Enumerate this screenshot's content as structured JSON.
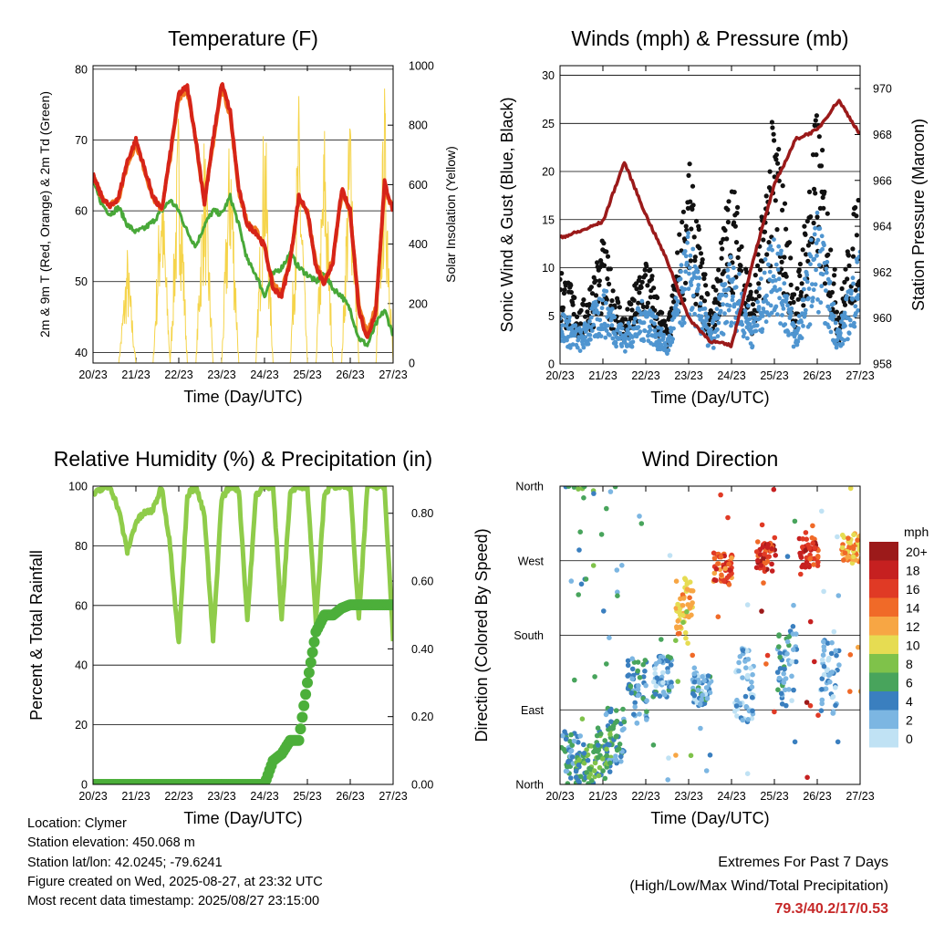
{
  "x_ticks": [
    "20/23",
    "21/23",
    "22/23",
    "23/23",
    "24/23",
    "25/23",
    "26/23",
    "27/23"
  ],
  "x_label": "Time (Day/UTC)",
  "info": {
    "location": "Location: Clymer",
    "elevation": "Station elevation: 450.068 m",
    "latlon": "Station lat/lon: 42.0245; -79.6241",
    "created": "Figure created on Wed, 2025-08-27, at 23:32 UTC",
    "recent": "Most recent data timestamp: 2025/08/27 23:15:00"
  },
  "extremes": {
    "title": "Extremes For Past 7 Days",
    "subtitle": "(High/Low/Max Wind/Total Precipitation)",
    "values": "79.3/40.2/17/0.53"
  },
  "chart_data": [
    {
      "id": "temperature",
      "type": "line",
      "title": "Temperature (F)",
      "ylabel": "2m & 9m T (Red, Orange) & 2m Td (Green)",
      "y2label": "Solar Insolation (Yellow)",
      "ylim": [
        38.5,
        80.5
      ],
      "y2lim": [
        0,
        1000
      ],
      "yticks": [
        "40",
        "50",
        "60",
        "70",
        "80"
      ],
      "y2ticks": [
        "0",
        "200",
        "400",
        "600",
        "800",
        "1000"
      ],
      "grid": true,
      "colors": {
        "t2m": "#d62418",
        "t9m": "#f07a20",
        "td": "#48a838",
        "solar": "#f5d44a"
      },
      "x_days": [
        0,
        0.2,
        0.4,
        0.6,
        0.8,
        1,
        1.2,
        1.4,
        1.6,
        1.8,
        2,
        2.2,
        2.4,
        2.6,
        2.8,
        3,
        3.2,
        3.4,
        3.6,
        3.8,
        4,
        4.2,
        4.4,
        4.6,
        4.8,
        5,
        5.2,
        5.4,
        5.6,
        5.8,
        6,
        6.2,
        6.4,
        6.6,
        6.8,
        7
      ],
      "series": [
        {
          "key": "t2m",
          "values": [
            65,
            62,
            60.5,
            62,
            67,
            70,
            66,
            62,
            60,
            68,
            76.5,
            77.5,
            70,
            61,
            70,
            78,
            74,
            63,
            58,
            57,
            55,
            49,
            48,
            53,
            62,
            60,
            52,
            49.5,
            53,
            63,
            60,
            46,
            42,
            46,
            64,
            60
          ]
        },
        {
          "key": "t9m",
          "values": [
            64.8,
            62,
            60.8,
            61.8,
            66.5,
            69.5,
            65.8,
            61.8,
            60.2,
            67.5,
            76,
            77,
            69.8,
            61.2,
            69.5,
            77.5,
            73.5,
            62.8,
            58.2,
            57.2,
            55,
            49.5,
            48.5,
            53.2,
            61.5,
            59.8,
            52.5,
            50,
            53.2,
            62.5,
            59.8,
            46.5,
            42.5,
            46.5,
            63.5,
            60
          ]
        },
        {
          "key": "td",
          "values": [
            64,
            61,
            59.5,
            60.5,
            58,
            57,
            57.5,
            58.5,
            60,
            61.5,
            60,
            57,
            55,
            58,
            60,
            59.5,
            62,
            58,
            53,
            51,
            48,
            51,
            52,
            54,
            52,
            51,
            50,
            51,
            49,
            48,
            46,
            42,
            41,
            44,
            46,
            42.5
          ]
        },
        {
          "key": "solar",
          "values": [
            0,
            0,
            0,
            0,
            400,
            0,
            0,
            0,
            750,
            0,
            920,
            0,
            0,
            820,
            0,
            0,
            880,
            0,
            0,
            0,
            930,
            0,
            0,
            0,
            920,
            0,
            0,
            850,
            0,
            0,
            970,
            0,
            0,
            0,
            960,
            0
          ]
        }
      ]
    },
    {
      "id": "winds",
      "type": "scatter",
      "title": "Winds (mph) & Pressure (mb)",
      "ylabel": "Sonic Wind & Gust (Blue, Black)",
      "y2label": "Station Pressure (Maroon)",
      "ylim": [
        0,
        31
      ],
      "y2lim": [
        958,
        971
      ],
      "yticks": [
        "0",
        "5",
        "10",
        "15",
        "20",
        "25",
        "30"
      ],
      "y2ticks": [
        "958",
        "960",
        "962",
        "964",
        "966",
        "968",
        "970"
      ],
      "grid": true,
      "colors": {
        "wind": "#4f95d0",
        "gust": "#111111",
        "pressure": "#9b1a1a"
      },
      "x_days": [
        0,
        0.5,
        1,
        1.5,
        2,
        2.5,
        3,
        3.5,
        4,
        4.5,
        5,
        5.5,
        6,
        6.5,
        7
      ],
      "series": [
        {
          "key": "wind",
          "values": [
            5,
            3,
            7,
            3,
            6,
            2,
            12,
            3,
            10,
            4,
            13,
            3,
            14,
            3,
            11
          ]
        },
        {
          "key": "gust",
          "values": [
            9,
            5,
            11,
            4,
            10,
            3,
            18,
            5,
            17,
            6,
            23,
            6,
            23,
            5,
            17
          ]
        },
        {
          "key": "pressure",
          "values": [
            963.5,
            963.8,
            964.2,
            966.8,
            964.5,
            962.5,
            960,
            959,
            958.8,
            962.5,
            965.8,
            967.8,
            968.2,
            969.5,
            968
          ]
        }
      ]
    },
    {
      "id": "humidity",
      "type": "line",
      "title": "Relative Humidity (%) & Precipitation (in)",
      "ylabel": "Percent & Total Rainfall",
      "ylim": [
        0,
        100
      ],
      "y2lim": [
        0,
        0.88
      ],
      "yticks": [
        "0",
        "20",
        "40",
        "60",
        "80",
        "100"
      ],
      "y2ticks": [
        "0.00",
        "0.20",
        "0.40",
        "0.60",
        "0.80"
      ],
      "grid": true,
      "colors": {
        "rh": "#8fcc4a",
        "precip": "#4caf3a"
      },
      "x_days": [
        0,
        0.2,
        0.4,
        0.6,
        0.8,
        1,
        1.2,
        1.4,
        1.6,
        1.8,
        2,
        2.2,
        2.4,
        2.6,
        2.8,
        3,
        3.2,
        3.4,
        3.6,
        3.8,
        4,
        4.2,
        4.4,
        4.6,
        4.8,
        5,
        5.2,
        5.4,
        5.6,
        5.8,
        6,
        6.2,
        6.4,
        6.6,
        6.8,
        7
      ],
      "series": [
        {
          "key": "rh",
          "values": [
            97,
            99,
            100,
            92,
            78,
            88,
            91,
            92,
            100,
            80,
            47,
            97,
            100,
            90,
            48,
            96,
            100,
            99,
            55,
            97,
            100,
            100,
            55,
            98,
            100,
            100,
            55,
            98,
            100,
            100,
            100,
            55,
            100,
            100,
            100,
            49
          ]
        },
        {
          "key": "precip",
          "values": [
            0,
            0,
            0,
            0,
            0,
            0,
            0,
            0,
            0,
            0,
            0,
            0,
            0,
            0,
            0,
            0,
            0,
            0,
            0,
            0,
            0,
            0.07,
            0.09,
            0.13,
            0.13,
            0.3,
            0.45,
            0.5,
            0.5,
            0.52,
            0.53,
            0.53,
            0.53,
            0.53,
            0.53,
            0.53
          ]
        }
      ]
    },
    {
      "id": "direction",
      "type": "scatter",
      "title": "Wind Direction",
      "ylabel": "Direction (Colored By Speed)",
      "ylim": [
        0,
        360
      ],
      "yticks": [
        "North",
        "East",
        "South",
        "West",
        "North"
      ],
      "grid": true,
      "legend": {
        "title": "mph",
        "placement": "right",
        "labels": [
          "20+",
          "18",
          "16",
          "14",
          "12",
          "10",
          "8",
          "6",
          "4",
          "2",
          "0"
        ],
        "colors": [
          "#9c1a1a",
          "#c62020",
          "#e03a25",
          "#f06a28",
          "#f7a644",
          "#e6dc52",
          "#7fc24a",
          "#48a45c",
          "#3a7fbf",
          "#7cb6e2",
          "#c0e2f4"
        ]
      },
      "clusters": [
        {
          "x": 0.25,
          "dir": 30,
          "spread": 35,
          "speed": 4
        },
        {
          "x": 0.6,
          "dir": 20,
          "spread": 30,
          "speed": 6
        },
        {
          "x": 1.0,
          "dir": 40,
          "spread": 30,
          "speed": 6
        },
        {
          "x": 1.3,
          "dir": 60,
          "spread": 35,
          "speed": 4
        },
        {
          "x": 1.8,
          "dir": 110,
          "spread": 40,
          "speed": 4
        },
        {
          "x": 2.4,
          "dir": 130,
          "spread": 25,
          "speed": 3
        },
        {
          "x": 2.9,
          "dir": 210,
          "spread": 40,
          "speed": 11
        },
        {
          "x": 3.3,
          "dir": 115,
          "spread": 20,
          "speed": 3
        },
        {
          "x": 3.8,
          "dir": 260,
          "spread": 20,
          "speed": 15
        },
        {
          "x": 4.3,
          "dir": 120,
          "spread": 45,
          "speed": 2
        },
        {
          "x": 4.8,
          "dir": 275,
          "spread": 18,
          "speed": 17
        },
        {
          "x": 5.3,
          "dir": 140,
          "spread": 45,
          "speed": 3
        },
        {
          "x": 5.8,
          "dir": 280,
          "spread": 18,
          "speed": 17
        },
        {
          "x": 6.3,
          "dir": 130,
          "spread": 45,
          "speed": 2
        },
        {
          "x": 6.8,
          "dir": 285,
          "spread": 18,
          "speed": 12
        }
      ]
    }
  ]
}
